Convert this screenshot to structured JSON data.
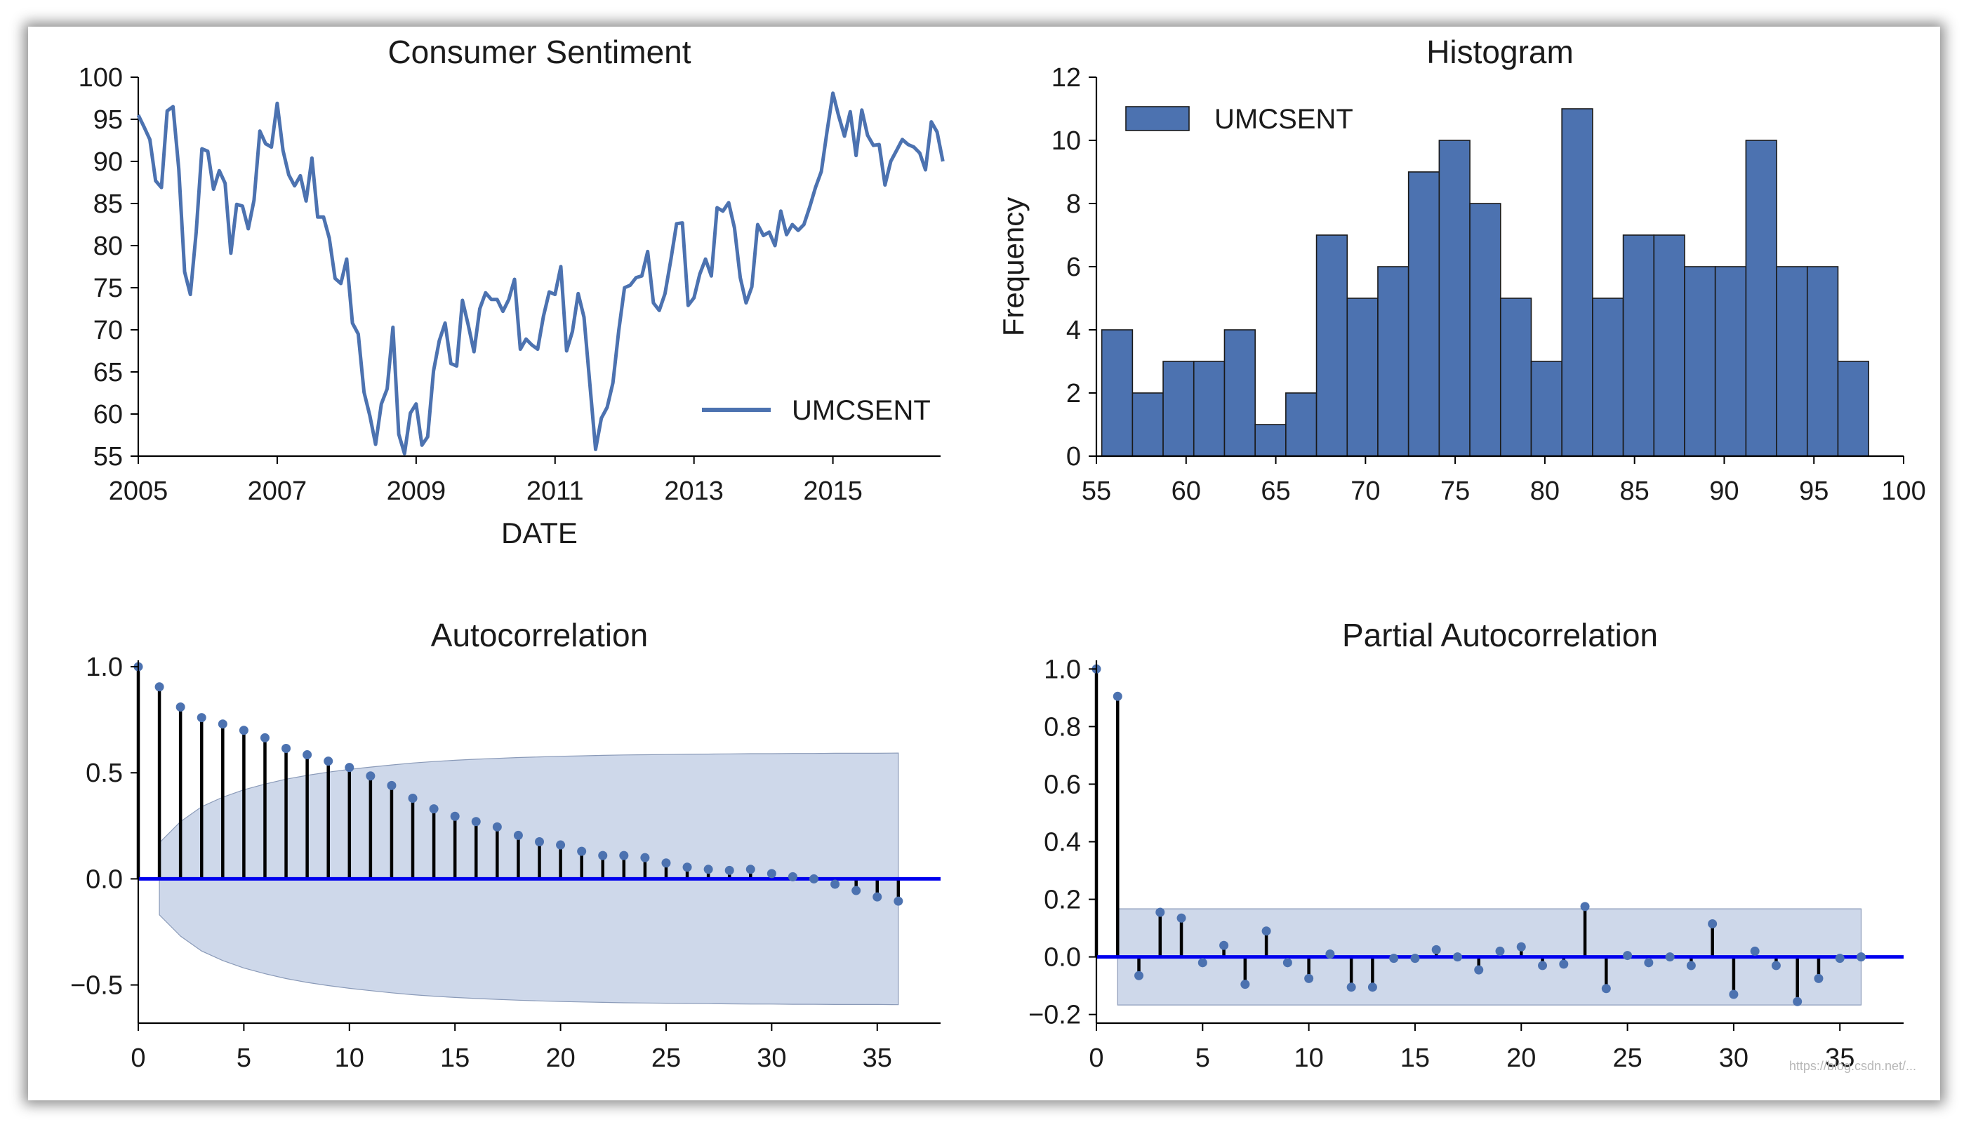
{
  "colors": {
    "series": "#4c72b0",
    "baseline": "#0000ee",
    "stem": "#000000",
    "band": "#c6d1e6",
    "band_edge": "#8a9ab8",
    "hist_edge": "#1a1a1a"
  },
  "watermark": "https://blog.csdn.net/...",
  "chart_data": [
    {
      "id": "ts",
      "type": "line",
      "title": "Consumer Sentiment",
      "xlabel": "DATE",
      "ylabel": "",
      "xlim": [
        2005.0,
        2016.55
      ],
      "ylim": [
        55,
        100
      ],
      "xticks": [
        2005,
        2007,
        2009,
        2011,
        2013,
        2015
      ],
      "xtick_labels": [
        "2005",
        "2007",
        "2009",
        "2011",
        "2013",
        "2015"
      ],
      "yticks": [
        55,
        60,
        65,
        70,
        75,
        80,
        85,
        90,
        95,
        100
      ],
      "ytick_labels": [
        "55",
        "60",
        "65",
        "70",
        "75",
        "80",
        "85",
        "90",
        "95",
        "100"
      ],
      "legend": {
        "label": "UMCSENT",
        "position": "lower-right"
      },
      "start": 2005.0,
      "step": 0.08333,
      "values": [
        95.5,
        94.1,
        92.6,
        87.7,
        86.9,
        96.0,
        96.5,
        89.1,
        76.9,
        74.2,
        81.6,
        91.5,
        91.2,
        86.7,
        88.9,
        87.4,
        79.1,
        84.9,
        84.7,
        82.0,
        85.4,
        93.6,
        92.1,
        91.7,
        96.9,
        91.3,
        88.4,
        87.1,
        88.3,
        85.3,
        90.4,
        83.4,
        83.4,
        80.9,
        76.1,
        75.5,
        78.4,
        70.8,
        69.5,
        62.6,
        59.8,
        56.4,
        61.2,
        63.0,
        70.3,
        57.6,
        55.3,
        60.1,
        61.2,
        56.3,
        57.3,
        65.1,
        68.7,
        70.8,
        66.0,
        65.7,
        73.5,
        70.6,
        67.4,
        72.5,
        74.4,
        73.6,
        73.6,
        72.2,
        73.6,
        76.0,
        67.7,
        68.9,
        68.2,
        67.7,
        71.6,
        74.5,
        74.2,
        77.5,
        67.5,
        69.8,
        74.3,
        71.5,
        63.7,
        55.8,
        59.5,
        60.8,
        63.7,
        69.9,
        75.0,
        75.3,
        76.2,
        76.4,
        79.3,
        73.2,
        72.3,
        74.3,
        78.3,
        82.6,
        82.7,
        72.9,
        73.8,
        76.6,
        78.4,
        76.4,
        84.5,
        84.1,
        85.1,
        82.1,
        76.2,
        73.2,
        75.1,
        82.5,
        81.2,
        81.6,
        80.0,
        84.1,
        81.3,
        82.5,
        81.8,
        82.5,
        84.6,
        86.9,
        88.8,
        93.6,
        98.1,
        95.4,
        93.0,
        95.9,
        90.7,
        96.1,
        93.1,
        91.9,
        92.0,
        87.2,
        90.0,
        91.3,
        92.6,
        92.0,
        91.7,
        91.0,
        89.0,
        94.7,
        93.5,
        90.0
      ]
    },
    {
      "id": "hist",
      "type": "bar",
      "title": "Histogram",
      "xlabel": "",
      "ylabel": "Frequency",
      "xlim": [
        55,
        100
      ],
      "ylim": [
        0,
        12
      ],
      "xticks": [
        55,
        60,
        65,
        70,
        75,
        80,
        85,
        90,
        95,
        100
      ],
      "xtick_labels": [
        "55",
        "60",
        "65",
        "70",
        "75",
        "80",
        "85",
        "90",
        "95",
        "100"
      ],
      "yticks": [
        0,
        2,
        4,
        6,
        8,
        10,
        12
      ],
      "ytick_labels": [
        "0",
        "2",
        "4",
        "6",
        "8",
        "10",
        "12"
      ],
      "legend": {
        "label": "UMCSENT",
        "position": "top-left"
      },
      "bin_start": 55.3,
      "bin_width": 1.71,
      "values": [
        4,
        2,
        3,
        3,
        4,
        1,
        2,
        7,
        5,
        6,
        9,
        10,
        8,
        5,
        3,
        11,
        5,
        7,
        7,
        6,
        6,
        10,
        6,
        6,
        3
      ]
    },
    {
      "id": "acf",
      "type": "scatter",
      "title": "Autocorrelation",
      "xlabel": "",
      "ylabel": "",
      "xlim": [
        0,
        38
      ],
      "ylim": [
        -0.68,
        1.03
      ],
      "xticks": [
        0,
        5,
        10,
        15,
        20,
        25,
        30,
        35
      ],
      "xtick_labels": [
        "0",
        "5",
        "10",
        "15",
        "20",
        "25",
        "30",
        "35"
      ],
      "yticks": [
        -0.5,
        0.0,
        0.5,
        1.0
      ],
      "ytick_labels": [
        "−0.5",
        "0.0",
        "0.5",
        "1.0"
      ],
      "lags": [
        0,
        1,
        2,
        3,
        4,
        5,
        6,
        7,
        8,
        9,
        10,
        11,
        12,
        13,
        14,
        15,
        16,
        17,
        18,
        19,
        20,
        21,
        22,
        23,
        24,
        25,
        26,
        27,
        28,
        29,
        30,
        31,
        32,
        33,
        34,
        35,
        36
      ],
      "values": [
        1.0,
        0.905,
        0.81,
        0.76,
        0.73,
        0.7,
        0.665,
        0.615,
        0.585,
        0.555,
        0.525,
        0.485,
        0.44,
        0.38,
        0.33,
        0.295,
        0.27,
        0.245,
        0.205,
        0.175,
        0.16,
        0.13,
        0.11,
        0.11,
        0.1,
        0.075,
        0.055,
        0.045,
        0.04,
        0.045,
        0.025,
        0.01,
        0.0,
        -0.025,
        -0.055,
        -0.085,
        -0.105
      ],
      "confint_upper": [
        null,
        0.17,
        0.27,
        0.34,
        0.385,
        0.42,
        0.447,
        0.47,
        0.488,
        0.503,
        0.516,
        0.527,
        0.537,
        0.546,
        0.553,
        0.559,
        0.564,
        0.568,
        0.572,
        0.575,
        0.578,
        0.58,
        0.582,
        0.584,
        0.585,
        0.586,
        0.587,
        0.588,
        0.589,
        0.59,
        0.59,
        0.591,
        0.591,
        0.592,
        0.592,
        0.592,
        0.593
      ]
    },
    {
      "id": "pacf",
      "type": "scatter",
      "title": "Partial Autocorrelation",
      "xlabel": "",
      "ylabel": "",
      "xlim": [
        0,
        38
      ],
      "ylim": [
        -0.23,
        1.03
      ],
      "xticks": [
        0,
        5,
        10,
        15,
        20,
        25,
        30,
        35
      ],
      "xtick_labels": [
        "0",
        "5",
        "10",
        "15",
        "20",
        "25",
        "30",
        "35"
      ],
      "yticks": [
        -0.2,
        0.0,
        0.2,
        0.4,
        0.6,
        0.8,
        1.0
      ],
      "ytick_labels": [
        "−0.2",
        "0.0",
        "0.2",
        "0.4",
        "0.6",
        "0.8",
        "1.0"
      ],
      "lags": [
        0,
        1,
        2,
        3,
        4,
        5,
        6,
        7,
        8,
        9,
        10,
        11,
        12,
        13,
        14,
        15,
        16,
        17,
        18,
        19,
        20,
        21,
        22,
        23,
        24,
        25,
        26,
        27,
        28,
        29,
        30,
        31,
        32,
        33,
        34,
        35,
        36
      ],
      "values": [
        1.0,
        0.905,
        -0.065,
        0.155,
        0.135,
        -0.02,
        0.04,
        -0.095,
        0.09,
        -0.02,
        -0.075,
        0.01,
        -0.105,
        -0.105,
        -0.005,
        -0.005,
        0.025,
        0.0,
        -0.045,
        0.02,
        0.035,
        -0.03,
        -0.025,
        0.175,
        -0.11,
        0.005,
        -0.02,
        0.0,
        -0.03,
        0.115,
        -0.13,
        0.02,
        -0.03,
        -0.155,
        -0.075,
        -0.005,
        0.0
      ],
      "confint": [
        0.167,
        0.167
      ]
    }
  ]
}
